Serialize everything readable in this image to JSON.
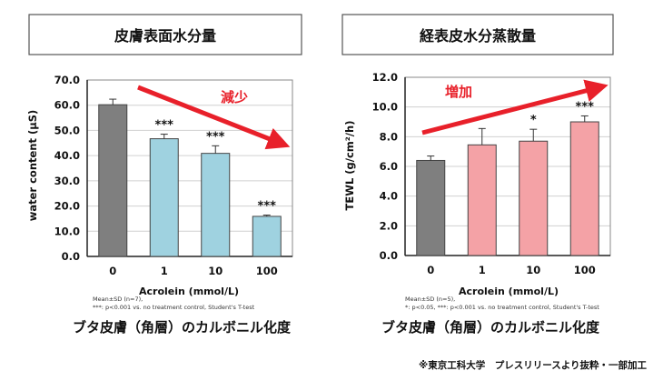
{
  "credit": "※東京工科大学　プレスリリースより抜粋・一部加工",
  "colors": {
    "arrow": "#e8202a",
    "grid": "#d0d0d0",
    "axis": "#222222"
  },
  "chart_data": [
    {
      "type": "bar",
      "title": "皮膚表面水分量",
      "ylabel": "water content (μS)",
      "xlabel": "Acrolein (mmol/L)",
      "categories": [
        "0",
        "1",
        "10",
        "100"
      ],
      "values": [
        60.2,
        46.7,
        40.9,
        15.9
      ],
      "errors": [
        2.2,
        1.8,
        3.0,
        0.5
      ],
      "significance": [
        "",
        "***",
        "***",
        "***"
      ],
      "bar_colors": [
        "#7f7f7f",
        "#9fd2e0",
        "#9fd2e0",
        "#9fd2e0"
      ],
      "ylim": [
        0,
        70
      ],
      "yticks": [
        "0.0",
        "10.0",
        "20.0",
        "30.0",
        "40.0",
        "50.0",
        "60.0",
        "70.0"
      ],
      "grid": true,
      "trend_label": "減少",
      "trend_direction": "down",
      "footnotes": [
        "Mean±SD (n=7),",
        "***: p<0.001 vs. no treatment control, Student's T-test"
      ],
      "caption": "ブタ皮膚（角層）のカルボニル化度"
    },
    {
      "type": "bar",
      "title": "経表皮水分蒸散量",
      "ylabel": "TEWL (g/cm²/h)",
      "xlabel": "Acrolein (mmol/L)",
      "categories": [
        "0",
        "1",
        "10",
        "100"
      ],
      "values": [
        6.4,
        7.45,
        7.7,
        9.0
      ],
      "errors": [
        0.3,
        1.1,
        0.8,
        0.4
      ],
      "significance": [
        "",
        "",
        "*",
        "***"
      ],
      "bar_colors": [
        "#7f7f7f",
        "#f4a2a6",
        "#f4a2a6",
        "#f4a2a6"
      ],
      "ylim": [
        0,
        12
      ],
      "yticks": [
        "0.0",
        "2.0",
        "4.0",
        "6.0",
        "8.0",
        "10.0",
        "12.0"
      ],
      "grid": true,
      "trend_label": "増加",
      "trend_direction": "up",
      "footnotes": [
        "Mean±SD (n=5),",
        "*: p<0.05, ***: p<0.001 vs. no treatment control, Student's T-test"
      ],
      "caption": "ブタ皮膚（角層）のカルボニル化度"
    }
  ]
}
